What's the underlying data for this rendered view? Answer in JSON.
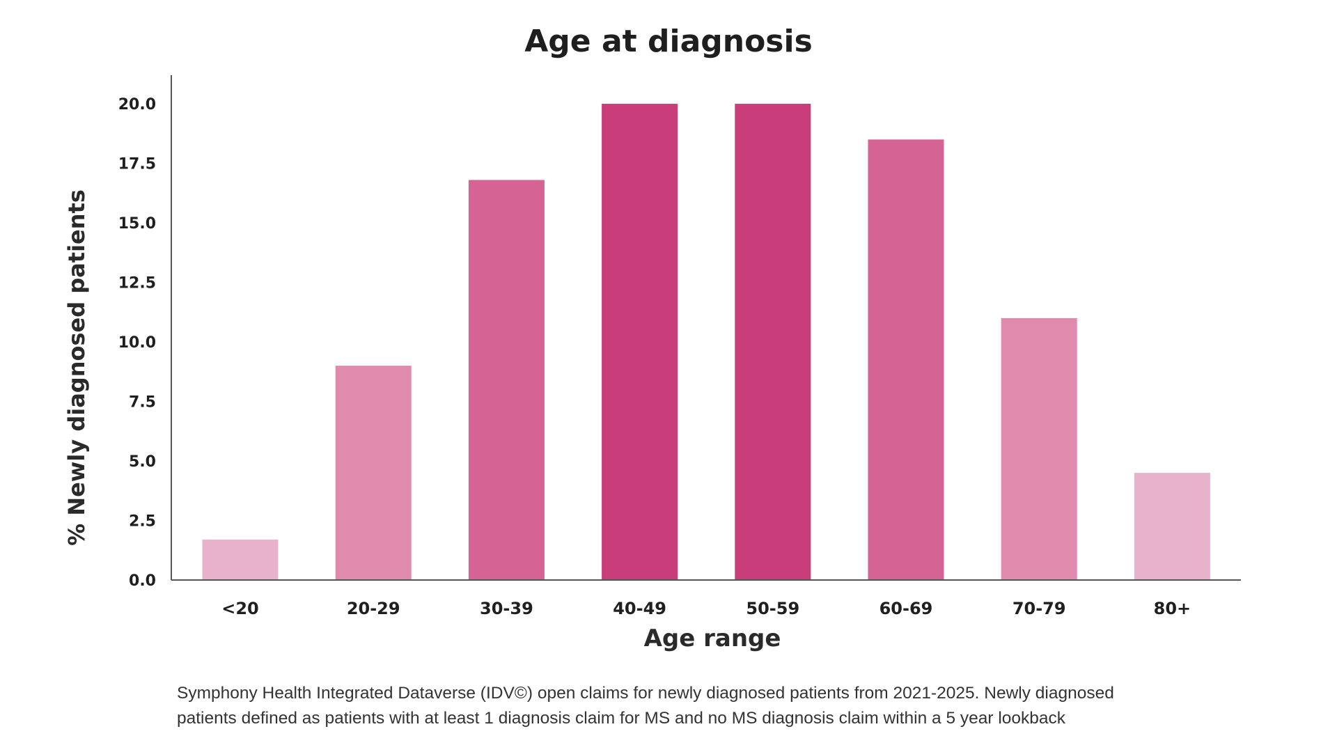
{
  "chart_data": {
    "type": "bar",
    "title": "Age at diagnosis",
    "xlabel": "Age range",
    "ylabel": "% Newly diagnosed patients",
    "categories": [
      "<20",
      "20-29",
      "30-39",
      "40-49",
      "50-59",
      "60-69",
      "70-79",
      "80+"
    ],
    "values": [
      1.7,
      9.0,
      16.8,
      20.0,
      20.0,
      18.5,
      11.0,
      4.5
    ],
    "bar_colors": [
      "#e8b2cc",
      "#e08aae",
      "#d56495",
      "#c93d7b",
      "#c93d7b",
      "#d56495",
      "#e08aae",
      "#e8b2cc"
    ],
    "ylim": [
      0,
      21.2
    ],
    "yticks": [
      "0.0",
      "2.5",
      "5.0",
      "7.5",
      "10.0",
      "12.5",
      "15.0",
      "17.5",
      "20.0"
    ],
    "ytick_values": [
      0,
      2.5,
      5,
      7.5,
      10,
      12.5,
      15,
      17.5,
      20
    ],
    "grid": false,
    "legend": "none"
  },
  "footnote": {
    "line1": "Symphony Health Integrated Dataverse (IDV©) open claims for newly diagnosed patients from 2021-2025.  Newly diagnosed",
    "line2": "patients defined as patients with at least 1 diagnosis claim for MS and no MS diagnosis claim within a 5 year lookback"
  }
}
